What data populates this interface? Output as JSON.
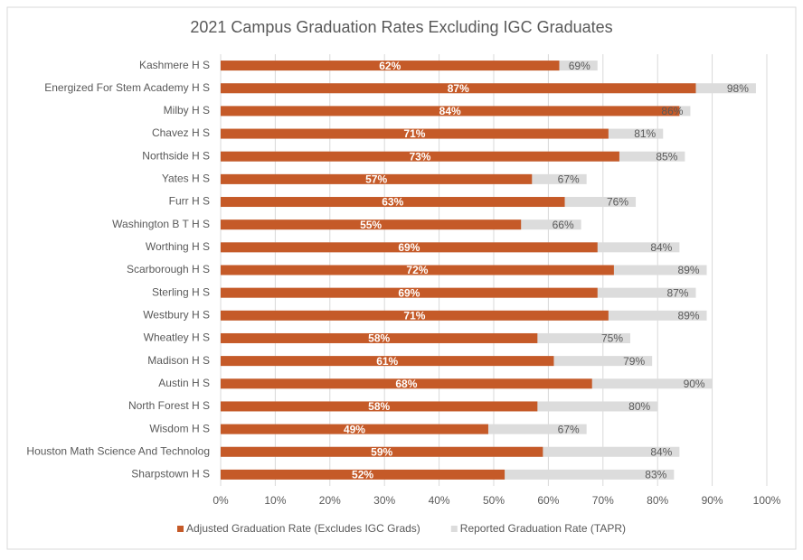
{
  "chart_data": {
    "type": "overlap-bar-horizontal",
    "title": "2021 Campus Graduation Rates Excluding IGC Graduates",
    "categories": [
      "Kashmere H S",
      "Energized For Stem Academy H S",
      "Milby H S",
      "Chavez H S",
      "Northside H S",
      "Yates H S",
      "Furr H S",
      "Washington B T H S",
      "Worthing H S",
      "Scarborough H S",
      "Sterling H S",
      "Westbury H S",
      "Wheatley H S",
      "Madison H S",
      "Austin H S",
      "North Forest H S",
      "Wisdom H S",
      "Houston Math Science And Technolog",
      "Sharpstown H S"
    ],
    "series": [
      {
        "name": "Adjusted Graduation Rate (Excludes IGC Grads)",
        "color": "#c55a28",
        "values": [
          62,
          87,
          84,
          71,
          73,
          57,
          63,
          55,
          69,
          72,
          69,
          71,
          58,
          61,
          68,
          58,
          49,
          59,
          52
        ],
        "value_labels": [
          "62%",
          "87%",
          "84%",
          "71%",
          "73%",
          "57%",
          "63%",
          "55%",
          "69%",
          "72%",
          "69%",
          "71%",
          "58%",
          "61%",
          "68%",
          "58%",
          "49%",
          "59%",
          "52%"
        ]
      },
      {
        "name": "Reported Graduation Rate (TAPR)",
        "color": "#dcdcdc",
        "values": [
          69,
          98,
          86,
          81,
          85,
          67,
          76,
          66,
          84,
          89,
          87,
          89,
          75,
          79,
          90,
          80,
          67,
          84,
          83
        ],
        "value_labels": [
          "69%",
          "98%",
          "86%",
          "81%",
          "85%",
          "67%",
          "76%",
          "66%",
          "84%",
          "89%",
          "87%",
          "89%",
          "75%",
          "79%",
          "90%",
          "80%",
          "67%",
          "84%",
          "83%"
        ]
      }
    ],
    "xlim": [
      0,
      100
    ],
    "xticks": [
      {
        "value": 0,
        "label": "0%"
      },
      {
        "value": 10,
        "label": "10%"
      },
      {
        "value": 20,
        "label": "20%"
      },
      {
        "value": 30,
        "label": "30%"
      },
      {
        "value": 40,
        "label": "40%"
      },
      {
        "value": 50,
        "label": "50%"
      },
      {
        "value": 60,
        "label": "60%"
      },
      {
        "value": 70,
        "label": "70%"
      },
      {
        "value": 80,
        "label": "80%"
      },
      {
        "value": 90,
        "label": "90%"
      },
      {
        "value": 100,
        "label": "100%"
      }
    ],
    "grid": true,
    "legend": "bottom"
  }
}
